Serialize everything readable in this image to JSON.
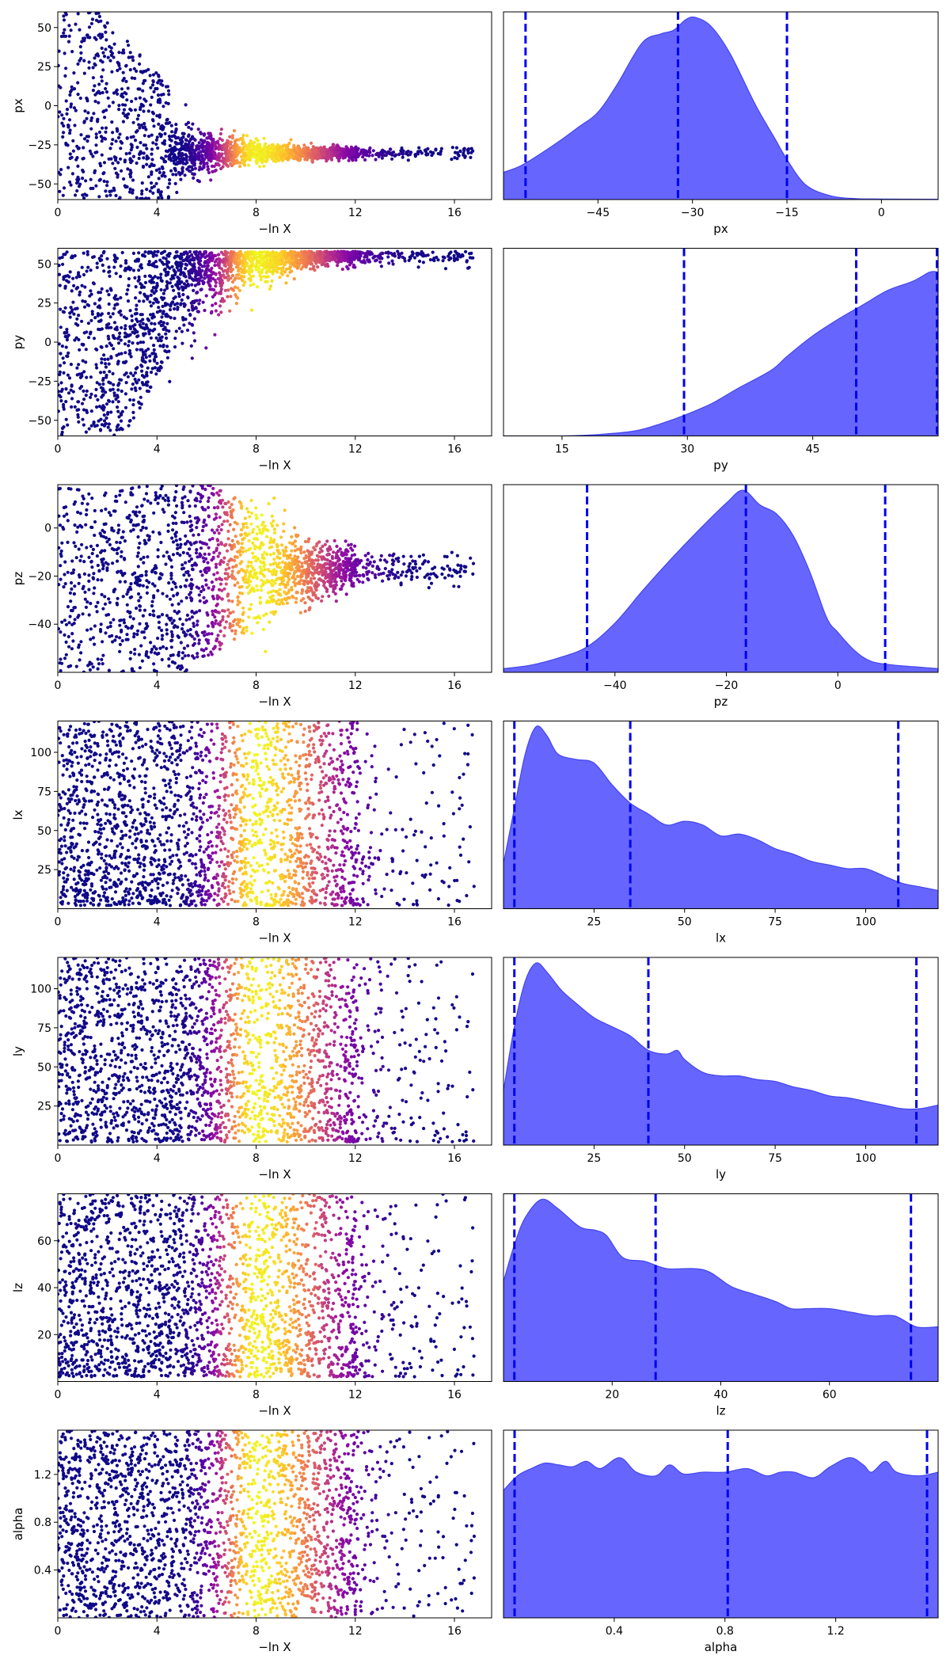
{
  "chart_data": [
    {
      "type": "scatter",
      "panel": "trace",
      "param": "px",
      "xlabel": "−ln X",
      "ylabel": "px",
      "xlim": [
        0,
        17.5
      ],
      "ylim": [
        -60,
        60
      ],
      "x_ticks": [
        {
          "v": 0,
          "label": "0"
        },
        {
          "v": 4,
          "label": "4"
        },
        {
          "v": 8,
          "label": "8"
        },
        {
          "v": 12,
          "label": "12"
        },
        {
          "v": 16,
          "label": "16"
        }
      ],
      "y_ticks": [
        {
          "v": 50,
          "label": "50"
        },
        {
          "v": 25,
          "label": "25"
        },
        {
          "v": 0,
          "label": "0"
        },
        {
          "v": -25,
          "label": "−25"
        },
        {
          "v": -50,
          "label": "−50"
        }
      ],
      "shape": "converge",
      "converge_center": -30,
      "converge_x": 4.5,
      "converge_spread": 20,
      "converge_min_spread": 4,
      "tail_to": 16.8,
      "colormap": "plasma",
      "peak_x": 8
    },
    {
      "type": "area",
      "panel": "marginal",
      "param": "px",
      "xlabel": "px",
      "xlim": [
        -60,
        9
      ],
      "x_ticks": [
        {
          "v": -45,
          "label": "−45"
        },
        {
          "v": -30,
          "label": "−30"
        },
        {
          "v": -15,
          "label": "−15"
        },
        {
          "v": 0,
          "label": "0"
        }
      ],
      "density": [
        [
          -60,
          0.15
        ],
        [
          -57,
          0.19
        ],
        [
          -52,
          0.3
        ],
        [
          -48,
          0.4
        ],
        [
          -45,
          0.48
        ],
        [
          -42,
          0.63
        ],
        [
          -38,
          0.86
        ],
        [
          -35,
          0.91
        ],
        [
          -33,
          0.93
        ],
        [
          -31,
          0.99
        ],
        [
          -29.5,
          1.0
        ],
        [
          -27,
          0.95
        ],
        [
          -24,
          0.8
        ],
        [
          -20,
          0.52
        ],
        [
          -17,
          0.34
        ],
        [
          -15,
          0.22
        ],
        [
          -12,
          0.08
        ],
        [
          -8,
          0.02
        ],
        [
          -4,
          0.005
        ],
        [
          0,
          0.003
        ],
        [
          9,
          0.002
        ]
      ],
      "quantile_lines": [
        -56.5,
        -32.3,
        -15
      ]
    },
    {
      "type": "scatter",
      "panel": "trace",
      "param": "py",
      "xlabel": "−ln X",
      "ylabel": "py",
      "xlim": [
        0,
        17.5
      ],
      "ylim": [
        -60,
        60
      ],
      "x_ticks": [
        {
          "v": 0,
          "label": "0"
        },
        {
          "v": 4,
          "label": "4"
        },
        {
          "v": 8,
          "label": "8"
        },
        {
          "v": 12,
          "label": "12"
        },
        {
          "v": 16,
          "label": "16"
        }
      ],
      "y_ticks": [
        {
          "v": 50,
          "label": "50"
        },
        {
          "v": 25,
          "label": "25"
        },
        {
          "v": 0,
          "label": "0"
        },
        {
          "v": -25,
          "label": "−25"
        },
        {
          "v": -50,
          "label": "−50"
        }
      ],
      "shape": "converge_top",
      "converge_center": 58,
      "converge_x": 4.5,
      "converge_spread": 30,
      "converge_min_spread": 4,
      "tail_to": 16.8,
      "colormap": "plasma",
      "peak_x": 8
    },
    {
      "type": "area",
      "panel": "marginal",
      "param": "py",
      "xlabel": "py",
      "xlim": [
        8,
        60
      ],
      "x_ticks": [
        {
          "v": 15,
          "label": "15"
        },
        {
          "v": 30,
          "label": "30"
        },
        {
          "v": 45,
          "label": "45"
        }
      ],
      "density": [
        [
          8,
          0
        ],
        [
          15,
          0.0
        ],
        [
          20,
          0.01
        ],
        [
          24,
          0.03
        ],
        [
          27,
          0.07
        ],
        [
          30,
          0.12
        ],
        [
          33,
          0.18
        ],
        [
          36,
          0.26
        ],
        [
          40,
          0.36
        ],
        [
          42,
          0.44
        ],
        [
          45,
          0.55
        ],
        [
          48,
          0.64
        ],
        [
          51,
          0.72
        ],
        [
          54,
          0.8
        ],
        [
          57,
          0.85
        ],
        [
          59,
          0.9
        ],
        [
          60,
          0.9
        ]
      ],
      "quantile_lines": [
        29.6,
        50.2,
        60
      ]
    },
    {
      "type": "scatter",
      "panel": "trace",
      "param": "pz",
      "xlabel": "−ln X",
      "ylabel": "pz",
      "xlim": [
        0,
        17.5
      ],
      "ylim": [
        -60,
        18
      ],
      "x_ticks": [
        {
          "v": 0,
          "label": "0"
        },
        {
          "v": 4,
          "label": "4"
        },
        {
          "v": 8,
          "label": "8"
        },
        {
          "v": 12,
          "label": "12"
        },
        {
          "v": 16,
          "label": "16"
        }
      ],
      "y_ticks": [
        {
          "v": 0,
          "label": "0"
        },
        {
          "v": -20,
          "label": "−20"
        },
        {
          "v": -40,
          "label": "−40"
        }
      ],
      "shape": "converge",
      "converge_center": -17,
      "converge_x": 7.5,
      "converge_spread": 30,
      "converge_min_spread": 6,
      "tail_to": 16.8,
      "colormap": "plasma",
      "peak_x": 8
    },
    {
      "type": "area",
      "panel": "marginal",
      "param": "pz",
      "xlabel": "pz",
      "xlim": [
        -60,
        18
      ],
      "x_ticks": [
        {
          "v": -40,
          "label": "−40"
        },
        {
          "v": -20,
          "label": "−20"
        },
        {
          "v": 0,
          "label": "0"
        }
      ],
      "density": [
        [
          -60,
          0.02
        ],
        [
          -55,
          0.04
        ],
        [
          -50,
          0.08
        ],
        [
          -45,
          0.14
        ],
        [
          -40,
          0.27
        ],
        [
          -35,
          0.45
        ],
        [
          -30,
          0.62
        ],
        [
          -25,
          0.78
        ],
        [
          -20,
          0.93
        ],
        [
          -17,
          1.0
        ],
        [
          -14,
          0.92
        ],
        [
          -11,
          0.87
        ],
        [
          -8,
          0.75
        ],
        [
          -5,
          0.55
        ],
        [
          -2,
          0.3
        ],
        [
          0,
          0.22
        ],
        [
          3,
          0.12
        ],
        [
          6,
          0.06
        ],
        [
          10,
          0.04
        ],
        [
          14,
          0.03
        ],
        [
          18,
          0.02
        ]
      ],
      "quantile_lines": [
        -45,
        -16.5,
        8.5
      ]
    },
    {
      "type": "scatter",
      "panel": "trace",
      "param": "lx",
      "xlabel": "−ln X",
      "ylabel": "lx",
      "xlim": [
        0,
        17.5
      ],
      "ylim": [
        0,
        120
      ],
      "x_ticks": [
        {
          "v": 0,
          "label": "0"
        },
        {
          "v": 4,
          "label": "4"
        },
        {
          "v": 8,
          "label": "8"
        },
        {
          "v": 12,
          "label": "12"
        },
        {
          "v": 16,
          "label": "16"
        }
      ],
      "y_ticks": [
        {
          "v": 100,
          "label": "100"
        },
        {
          "v": 75,
          "label": "75"
        },
        {
          "v": 50,
          "label": "50"
        },
        {
          "v": 25,
          "label": "25"
        }
      ],
      "shape": "skew_bottom",
      "floor": 2,
      "tail_to": 16.8,
      "colormap": "plasma",
      "peak_x": 8
    },
    {
      "type": "area",
      "panel": "marginal",
      "param": "lx",
      "xlabel": "lx",
      "xlim": [
        0,
        120
      ],
      "x_ticks": [
        {
          "v": 25,
          "label": "25"
        },
        {
          "v": 50,
          "label": "50"
        },
        {
          "v": 75,
          "label": "75"
        },
        {
          "v": 100,
          "label": "100"
        }
      ],
      "density": [
        [
          0,
          0.25
        ],
        [
          3,
          0.55
        ],
        [
          6,
          0.85
        ],
        [
          9,
          1.0
        ],
        [
          12,
          0.95
        ],
        [
          15,
          0.85
        ],
        [
          20,
          0.82
        ],
        [
          25,
          0.8
        ],
        [
          30,
          0.68
        ],
        [
          35,
          0.58
        ],
        [
          40,
          0.52
        ],
        [
          45,
          0.46
        ],
        [
          50,
          0.48
        ],
        [
          55,
          0.46
        ],
        [
          60,
          0.4
        ],
        [
          65,
          0.41
        ],
        [
          70,
          0.38
        ],
        [
          75,
          0.33
        ],
        [
          80,
          0.3
        ],
        [
          85,
          0.26
        ],
        [
          90,
          0.24
        ],
        [
          95,
          0.22
        ],
        [
          100,
          0.22
        ],
        [
          105,
          0.18
        ],
        [
          110,
          0.14
        ],
        [
          115,
          0.12
        ],
        [
          120,
          0.1
        ]
      ],
      "quantile_lines": [
        3,
        35,
        109
      ]
    },
    {
      "type": "scatter",
      "panel": "trace",
      "param": "ly",
      "xlabel": "−ln X",
      "ylabel": "ly",
      "xlim": [
        0,
        17.5
      ],
      "ylim": [
        0,
        120
      ],
      "x_ticks": [
        {
          "v": 0,
          "label": "0"
        },
        {
          "v": 4,
          "label": "4"
        },
        {
          "v": 8,
          "label": "8"
        },
        {
          "v": 12,
          "label": "12"
        },
        {
          "v": 16,
          "label": "16"
        }
      ],
      "y_ticks": [
        {
          "v": 100,
          "label": "100"
        },
        {
          "v": 75,
          "label": "75"
        },
        {
          "v": 50,
          "label": "50"
        },
        {
          "v": 25,
          "label": "25"
        }
      ],
      "shape": "skew_bottom",
      "floor": 2,
      "tail_to": 16.8,
      "colormap": "plasma",
      "peak_x": 8
    },
    {
      "type": "area",
      "panel": "marginal",
      "param": "ly",
      "xlabel": "ly",
      "xlim": [
        0,
        120
      ],
      "x_ticks": [
        {
          "v": 25,
          "label": "25"
        },
        {
          "v": 50,
          "label": "50"
        },
        {
          "v": 75,
          "label": "75"
        },
        {
          "v": 100,
          "label": "100"
        }
      ],
      "density": [
        [
          0,
          0.3
        ],
        [
          3,
          0.65
        ],
        [
          6,
          0.9
        ],
        [
          9,
          1.0
        ],
        [
          12,
          0.95
        ],
        [
          16,
          0.85
        ],
        [
          20,
          0.78
        ],
        [
          25,
          0.7
        ],
        [
          30,
          0.65
        ],
        [
          35,
          0.6
        ],
        [
          40,
          0.52
        ],
        [
          45,
          0.5
        ],
        [
          48,
          0.52
        ],
        [
          50,
          0.47
        ],
        [
          55,
          0.4
        ],
        [
          60,
          0.38
        ],
        [
          65,
          0.38
        ],
        [
          70,
          0.36
        ],
        [
          75,
          0.35
        ],
        [
          80,
          0.32
        ],
        [
          85,
          0.3
        ],
        [
          90,
          0.27
        ],
        [
          95,
          0.26
        ],
        [
          100,
          0.24
        ],
        [
          105,
          0.22
        ],
        [
          110,
          0.2
        ],
        [
          115,
          0.2
        ],
        [
          120,
          0.22
        ]
      ],
      "quantile_lines": [
        3,
        40,
        114
      ]
    },
    {
      "type": "scatter",
      "panel": "trace",
      "param": "lz",
      "xlabel": "−ln X",
      "ylabel": "lz",
      "xlim": [
        0,
        17.5
      ],
      "ylim": [
        0,
        80
      ],
      "x_ticks": [
        {
          "v": 0,
          "label": "0"
        },
        {
          "v": 4,
          "label": "4"
        },
        {
          "v": 8,
          "label": "8"
        },
        {
          "v": 12,
          "label": "12"
        },
        {
          "v": 16,
          "label": "16"
        }
      ],
      "y_ticks": [
        {
          "v": 60,
          "label": "60"
        },
        {
          "v": 40,
          "label": "40"
        },
        {
          "v": 20,
          "label": "20"
        }
      ],
      "shape": "skew_bottom",
      "floor": 2,
      "tail_to": 16.8,
      "colormap": "plasma",
      "peak_x": 8
    },
    {
      "type": "area",
      "panel": "marginal",
      "param": "lz",
      "xlabel": "lz",
      "xlim": [
        0,
        80
      ],
      "x_ticks": [
        {
          "v": 20,
          "label": "20"
        },
        {
          "v": 40,
          "label": "40"
        },
        {
          "v": 60,
          "label": "60"
        }
      ],
      "density": [
        [
          0,
          0.55
        ],
        [
          2,
          0.75
        ],
        [
          4,
          0.9
        ],
        [
          7,
          1.0
        ],
        [
          10,
          0.95
        ],
        [
          14,
          0.85
        ],
        [
          17,
          0.83
        ],
        [
          19,
          0.8
        ],
        [
          22,
          0.68
        ],
        [
          26,
          0.66
        ],
        [
          30,
          0.62
        ],
        [
          35,
          0.62
        ],
        [
          38,
          0.6
        ],
        [
          42,
          0.52
        ],
        [
          46,
          0.48
        ],
        [
          50,
          0.44
        ],
        [
          53,
          0.4
        ],
        [
          56,
          0.4
        ],
        [
          60,
          0.4
        ],
        [
          64,
          0.38
        ],
        [
          68,
          0.36
        ],
        [
          72,
          0.36
        ],
        [
          76,
          0.3
        ],
        [
          80,
          0.3
        ]
      ],
      "quantile_lines": [
        2,
        28,
        75
      ]
    },
    {
      "type": "scatter",
      "panel": "trace",
      "param": "alpha",
      "xlabel": "−ln X",
      "ylabel": "alpha",
      "xlim": [
        0,
        17.5
      ],
      "ylim": [
        0,
        1.57
      ],
      "x_ticks": [
        {
          "v": 0,
          "label": "0"
        },
        {
          "v": 4,
          "label": "4"
        },
        {
          "v": 8,
          "label": "8"
        },
        {
          "v": 12,
          "label": "12"
        },
        {
          "v": 16,
          "label": "16"
        }
      ],
      "y_ticks": [
        {
          "v": 1.2,
          "label": "1.2"
        },
        {
          "v": 0.8,
          "label": "0.8"
        },
        {
          "v": 0.4,
          "label": "0.4"
        }
      ],
      "shape": "uniform",
      "tail_to": 16.8,
      "colormap": "plasma",
      "peak_x": 8
    },
    {
      "type": "area",
      "panel": "marginal",
      "param": "alpha",
      "xlabel": "alpha",
      "xlim": [
        0,
        1.57
      ],
      "x_ticks": [
        {
          "v": 0.4,
          "label": "0.4"
        },
        {
          "v": 0.8,
          "label": "0.8"
        },
        {
          "v": 1.2,
          "label": "1.2"
        }
      ],
      "density": [
        [
          0,
          0.7
        ],
        [
          0.05,
          0.78
        ],
        [
          0.1,
          0.82
        ],
        [
          0.15,
          0.85
        ],
        [
          0.2,
          0.84
        ],
        [
          0.25,
          0.83
        ],
        [
          0.3,
          0.86
        ],
        [
          0.35,
          0.82
        ],
        [
          0.42,
          0.88
        ],
        [
          0.48,
          0.8
        ],
        [
          0.55,
          0.78
        ],
        [
          0.6,
          0.84
        ],
        [
          0.65,
          0.79
        ],
        [
          0.72,
          0.8
        ],
        [
          0.8,
          0.8
        ],
        [
          0.88,
          0.82
        ],
        [
          0.95,
          0.78
        ],
        [
          1.0,
          0.8
        ],
        [
          1.05,
          0.8
        ],
        [
          1.12,
          0.77
        ],
        [
          1.18,
          0.83
        ],
        [
          1.25,
          0.88
        ],
        [
          1.3,
          0.84
        ],
        [
          1.33,
          0.8
        ],
        [
          1.38,
          0.86
        ],
        [
          1.42,
          0.8
        ],
        [
          1.5,
          0.78
        ],
        [
          1.57,
          0.8
        ]
      ],
      "quantile_lines": [
        0.04,
        0.81,
        1.53
      ]
    }
  ],
  "colors": {
    "fill": "#6666ff",
    "fill_edge": "#4444ee",
    "quantile_line": "#0000ee"
  }
}
